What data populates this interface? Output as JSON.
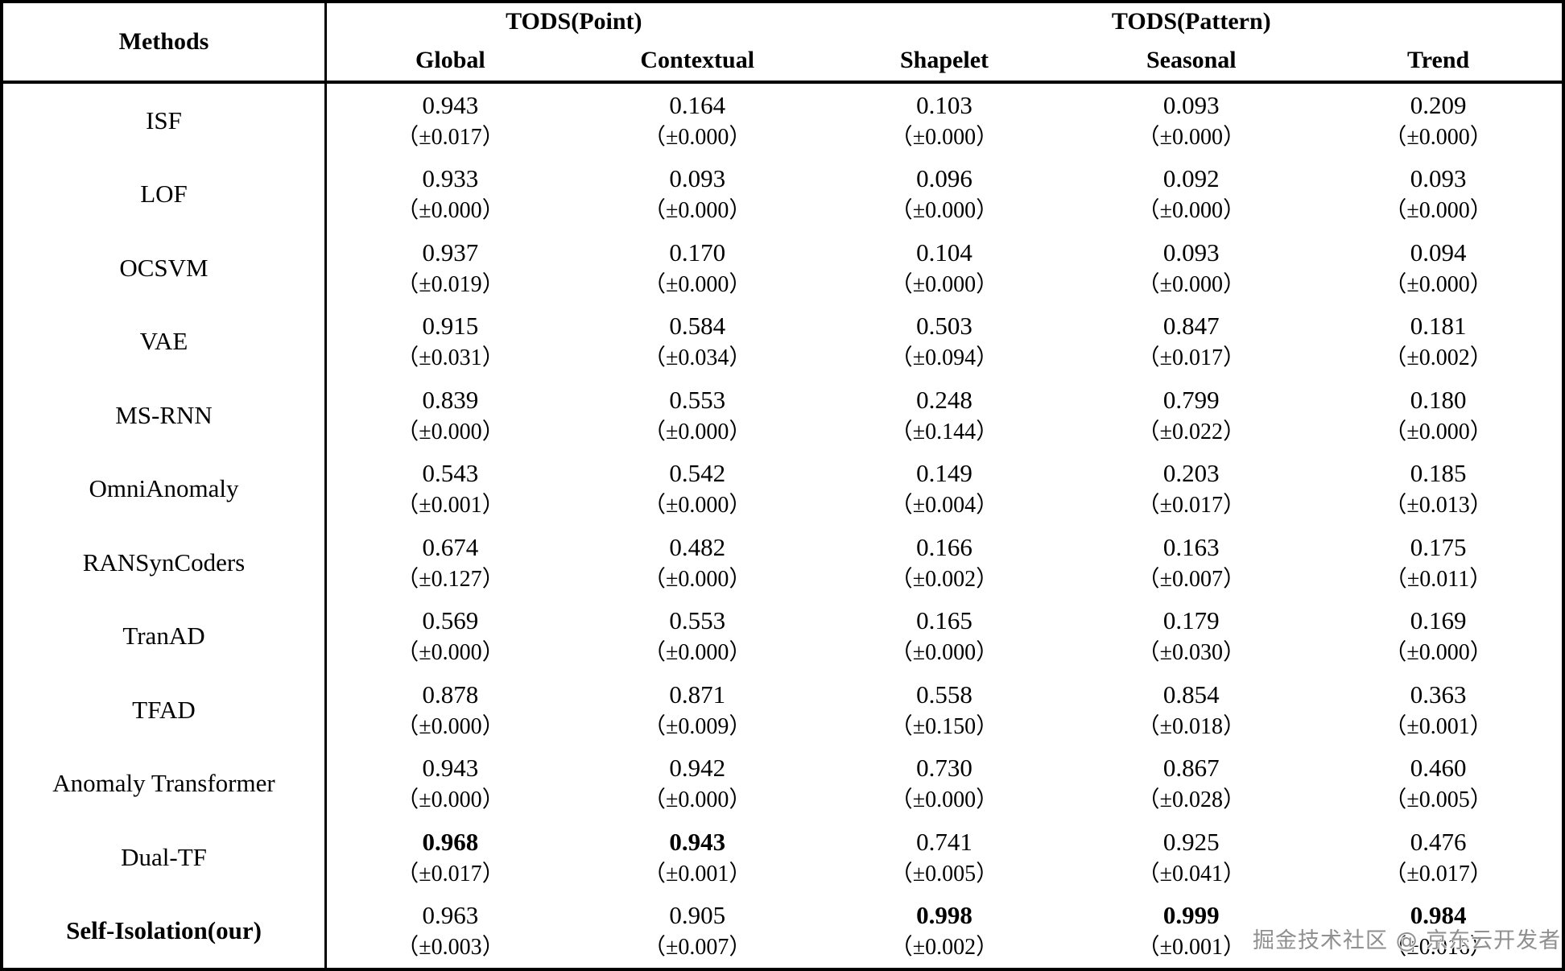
{
  "colors": {
    "background": "#ffffff",
    "text": "#000000",
    "border": "#000000",
    "watermark_gray": "#8f8f8f"
  },
  "table": {
    "header": {
      "methods_label": "Methods",
      "groups": [
        {
          "label": "TODS(Point)",
          "span": 2
        },
        {
          "label": "TODS(Pattern)",
          "span": 3
        }
      ],
      "columns": [
        "Global",
        "Contextual",
        "Shapelet",
        "Seasonal",
        "Trend"
      ]
    },
    "rows": [
      {
        "method": "ISF",
        "method_bold": false,
        "cells": [
          {
            "value": "0.943",
            "std": "（±0.017）",
            "bold": false
          },
          {
            "value": "0.164",
            "std": "（±0.000）",
            "bold": false
          },
          {
            "value": "0.103",
            "std": "（±0.000）",
            "bold": false
          },
          {
            "value": "0.093",
            "std": "（±0.000）",
            "bold": false
          },
          {
            "value": "0.209",
            "std": "（±0.000）",
            "bold": false
          }
        ]
      },
      {
        "method": "LOF",
        "method_bold": false,
        "cells": [
          {
            "value": "0.933",
            "std": "（±0.000）",
            "bold": false
          },
          {
            "value": "0.093",
            "std": "（±0.000）",
            "bold": false
          },
          {
            "value": "0.096",
            "std": "（±0.000）",
            "bold": false
          },
          {
            "value": "0.092",
            "std": "（±0.000）",
            "bold": false
          },
          {
            "value": "0.093",
            "std": "（±0.000）",
            "bold": false
          }
        ]
      },
      {
        "method": "OCSVM",
        "method_bold": false,
        "cells": [
          {
            "value": "0.937",
            "std": "（±0.019）",
            "bold": false
          },
          {
            "value": "0.170",
            "std": "（±0.000）",
            "bold": false
          },
          {
            "value": "0.104",
            "std": "（±0.000）",
            "bold": false
          },
          {
            "value": "0.093",
            "std": "（±0.000）",
            "bold": false
          },
          {
            "value": "0.094",
            "std": "（±0.000）",
            "bold": false
          }
        ]
      },
      {
        "method": "VAE",
        "method_bold": false,
        "cells": [
          {
            "value": "0.915",
            "std": "（±0.031）",
            "bold": false
          },
          {
            "value": "0.584",
            "std": "（±0.034）",
            "bold": false
          },
          {
            "value": "0.503",
            "std": "（±0.094）",
            "bold": false
          },
          {
            "value": "0.847",
            "std": "（±0.017）",
            "bold": false
          },
          {
            "value": "0.181",
            "std": "（±0.002）",
            "bold": false
          }
        ]
      },
      {
        "method": "MS-RNN",
        "method_bold": false,
        "cells": [
          {
            "value": "0.839",
            "std": "（±0.000）",
            "bold": false
          },
          {
            "value": "0.553",
            "std": "（±0.000）",
            "bold": false
          },
          {
            "value": "0.248",
            "std": "（±0.144）",
            "bold": false
          },
          {
            "value": "0.799",
            "std": "（±0.022）",
            "bold": false
          },
          {
            "value": "0.180",
            "std": "（±0.000）",
            "bold": false
          }
        ]
      },
      {
        "method": "OmniAnomaly",
        "method_bold": false,
        "cells": [
          {
            "value": "0.543",
            "std": "（±0.001）",
            "bold": false
          },
          {
            "value": "0.542",
            "std": "（±0.000）",
            "bold": false
          },
          {
            "value": "0.149",
            "std": "（±0.004）",
            "bold": false
          },
          {
            "value": "0.203",
            "std": "（±0.017）",
            "bold": false
          },
          {
            "value": "0.185",
            "std": "（±0.013）",
            "bold": false
          }
        ]
      },
      {
        "method": "RANSynCoders",
        "method_bold": false,
        "cells": [
          {
            "value": "0.674",
            "std": "（±0.127）",
            "bold": false
          },
          {
            "value": "0.482",
            "std": "（±0.000）",
            "bold": false
          },
          {
            "value": "0.166",
            "std": "（±0.002）",
            "bold": false
          },
          {
            "value": "0.163",
            "std": "（±0.007）",
            "bold": false
          },
          {
            "value": "0.175",
            "std": "（±0.011）",
            "bold": false
          }
        ]
      },
      {
        "method": "TranAD",
        "method_bold": false,
        "cells": [
          {
            "value": "0.569",
            "std": "（±0.000）",
            "bold": false
          },
          {
            "value": "0.553",
            "std": "（±0.000）",
            "bold": false
          },
          {
            "value": "0.165",
            "std": "（±0.000）",
            "bold": false
          },
          {
            "value": "0.179",
            "std": "（±0.030）",
            "bold": false
          },
          {
            "value": "0.169",
            "std": "（±0.000）",
            "bold": false
          }
        ]
      },
      {
        "method": "TFAD",
        "method_bold": false,
        "cells": [
          {
            "value": "0.878",
            "std": "（±0.000）",
            "bold": false
          },
          {
            "value": "0.871",
            "std": "（±0.009）",
            "bold": false
          },
          {
            "value": "0.558",
            "std": "（±0.150）",
            "bold": false
          },
          {
            "value": "0.854",
            "std": "（±0.018）",
            "bold": false
          },
          {
            "value": "0.363",
            "std": "（±0.001）",
            "bold": false
          }
        ]
      },
      {
        "method": "Anomaly Transformer",
        "method_bold": false,
        "cells": [
          {
            "value": "0.943",
            "std": "（±0.000）",
            "bold": false
          },
          {
            "value": "0.942",
            "std": "（±0.000）",
            "bold": false
          },
          {
            "value": "0.730",
            "std": "（±0.000）",
            "bold": false
          },
          {
            "value": "0.867",
            "std": "（±0.028）",
            "bold": false
          },
          {
            "value": "0.460",
            "std": "（±0.005）",
            "bold": false
          }
        ]
      },
      {
        "method": "Dual-TF",
        "method_bold": false,
        "cells": [
          {
            "value": "0.968",
            "std": "（±0.017）",
            "bold": true
          },
          {
            "value": "0.943",
            "std": "（±0.001）",
            "bold": true
          },
          {
            "value": "0.741",
            "std": "（±0.005）",
            "bold": false
          },
          {
            "value": "0.925",
            "std": "（±0.041）",
            "bold": false
          },
          {
            "value": "0.476",
            "std": "（±0.017）",
            "bold": false
          }
        ]
      },
      {
        "method": "Self-Isolation(our)",
        "method_bold": true,
        "cells": [
          {
            "value": "0.963",
            "std": "（±0.003）",
            "bold": false
          },
          {
            "value": "0.905",
            "std": "（±0.007）",
            "bold": false
          },
          {
            "value": "0.998",
            "std": "（±0.002）",
            "bold": true
          },
          {
            "value": "0.999",
            "std": "（±0.001）",
            "bold": true
          },
          {
            "value": "0.984",
            "std": "（±0.016）",
            "bold": true
          }
        ]
      }
    ]
  },
  "watermark": {
    "text": "掘金技术社区 @ 京东云开发者"
  }
}
